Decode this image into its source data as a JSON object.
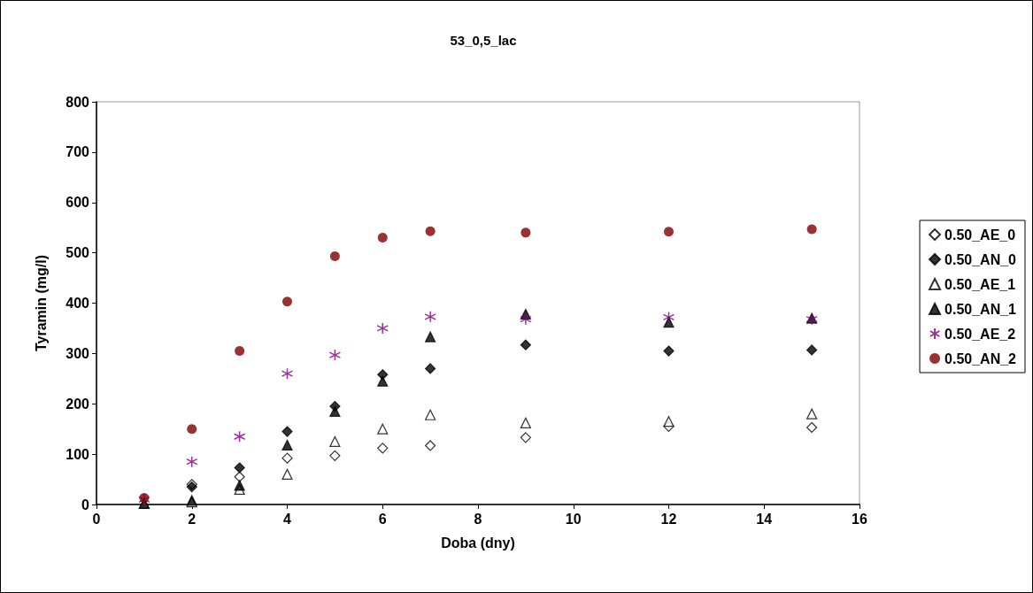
{
  "chart_data": {
    "type": "scatter",
    "title": "53_0,5_lac",
    "xlabel": "Doba (dny)",
    "ylabel": "Tyramin (mg/l)",
    "xlim": [
      0,
      16
    ],
    "xticks": [
      0,
      2,
      4,
      6,
      8,
      10,
      12,
      14,
      16
    ],
    "ylim": [
      0,
      800
    ],
    "yticks": [
      0,
      100,
      200,
      300,
      400,
      500,
      600,
      700,
      800
    ],
    "x": [
      1,
      2,
      3,
      4,
      5,
      6,
      7,
      9,
      12,
      15
    ],
    "grid": false,
    "legend": "right",
    "series": [
      {
        "name": "0.50_AE_0",
        "color": "#ffffff",
        "marker": "diamond",
        "values": [
          null,
          40,
          55,
          92,
          97,
          112,
          117,
          133,
          155,
          153
        ]
      },
      {
        "name": "0.50_AN_0",
        "color": "#000000",
        "marker": "diamond",
        "values": [
          null,
          35,
          73,
          145,
          195,
          258,
          270,
          317,
          305,
          307
        ]
      },
      {
        "name": "0.50_AE_1",
        "color": "#ffffff",
        "marker": "triangle",
        "values": [
          2,
          5,
          30,
          60,
          125,
          150,
          178,
          162,
          165,
          180
        ]
      },
      {
        "name": "0.50_AN_1",
        "color": "#000000",
        "marker": "triangle",
        "values": [
          2,
          8,
          38,
          118,
          185,
          245,
          333,
          378,
          362,
          370
        ]
      },
      {
        "name": "0.50_AE_2",
        "color": "#800080",
        "marker": "cross",
        "values": [
          10,
          85,
          135,
          260,
          297,
          350,
          373,
          368,
          372,
          368
        ]
      },
      {
        "name": "0.50_AN_2",
        "color": "#800000",
        "marker": "circle",
        "values": [
          13,
          150,
          305,
          403,
          493,
          530,
          543,
          540,
          542,
          547
        ]
      }
    ]
  }
}
